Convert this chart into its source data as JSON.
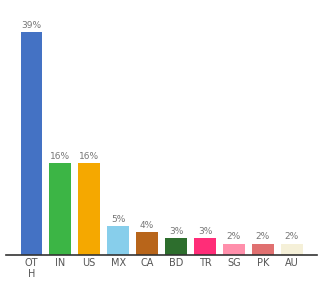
{
  "categories": [
    "OT\nH",
    "IN",
    "US",
    "MX",
    "CA",
    "BD",
    "TR",
    "SG",
    "PK",
    "AU"
  ],
  "values": [
    39,
    16,
    16,
    5,
    4,
    3,
    3,
    2,
    2,
    2
  ],
  "bar_colors": [
    "#4472c4",
    "#3cb545",
    "#f5a800",
    "#87ceeb",
    "#b8651a",
    "#2d6e2d",
    "#ff2d78",
    "#ff8fab",
    "#e07070",
    "#f5f0d8"
  ],
  "labels": [
    "39%",
    "16%",
    "16%",
    "5%",
    "4%",
    "3%",
    "3%",
    "2%",
    "2%",
    "2%"
  ],
  "ylim": [
    0,
    43
  ],
  "background_color": "#ffffff",
  "label_color": "#777777",
  "tick_color": "#555555",
  "bar_width": 0.75
}
